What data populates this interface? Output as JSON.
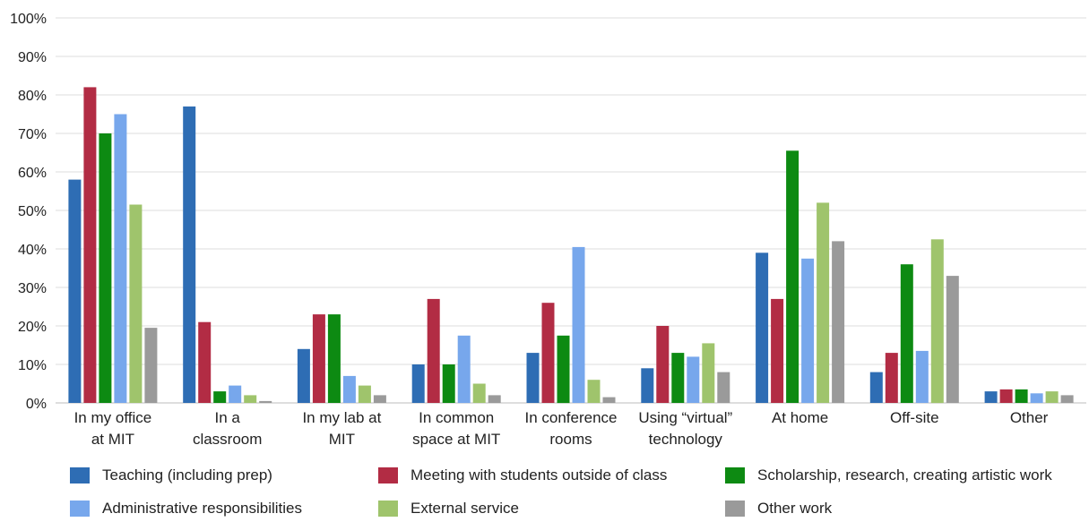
{
  "chart_data": {
    "type": "bar",
    "categories": [
      [
        "In my office",
        "at MIT"
      ],
      [
        "In a",
        "classroom"
      ],
      [
        "In my lab at",
        "MIT"
      ],
      [
        "In common",
        "space at MIT"
      ],
      [
        "In conference",
        "rooms"
      ],
      [
        "Using “virtual”",
        "technology"
      ],
      [
        "At home"
      ],
      [
        "Off-site"
      ],
      [
        "Other"
      ]
    ],
    "y_ticks": [
      "0%",
      "10%",
      "20%",
      "30%",
      "40%",
      "50%",
      "60%",
      "70%",
      "80%",
      "90%",
      "100%"
    ],
    "ylim": [
      0,
      100
    ],
    "grid": true,
    "legend_position": "bottom",
    "series": [
      {
        "name": "Teaching (including prep)",
        "color": "#2e6db4",
        "values": [
          58,
          77,
          14,
          10,
          13,
          9,
          39,
          8,
          3
        ]
      },
      {
        "name": "Meeting with students outside of class",
        "color": "#b22c44",
        "values": [
          82,
          21,
          23,
          27,
          26,
          20,
          27,
          13,
          3.5
        ]
      },
      {
        "name": "Scholarship, research, creating artistic work",
        "color": "#0d8a12",
        "values": [
          70,
          3,
          23,
          10,
          17.5,
          13,
          65.5,
          36,
          3.5
        ]
      },
      {
        "name": "Administrative responsibilities",
        "color": "#77a7ec",
        "values": [
          75,
          4.5,
          7,
          17.5,
          40.5,
          12,
          37.5,
          13.5,
          2.5
        ]
      },
      {
        "name": "External service",
        "color": "#9fc46c",
        "values": [
          51.5,
          2,
          4.5,
          5,
          6,
          15.5,
          52,
          42.5,
          3
        ]
      },
      {
        "name": "Other work",
        "color": "#9a9a9a",
        "values": [
          19.5,
          0.5,
          2,
          2,
          1.5,
          8,
          42,
          33,
          2
        ]
      }
    ]
  }
}
